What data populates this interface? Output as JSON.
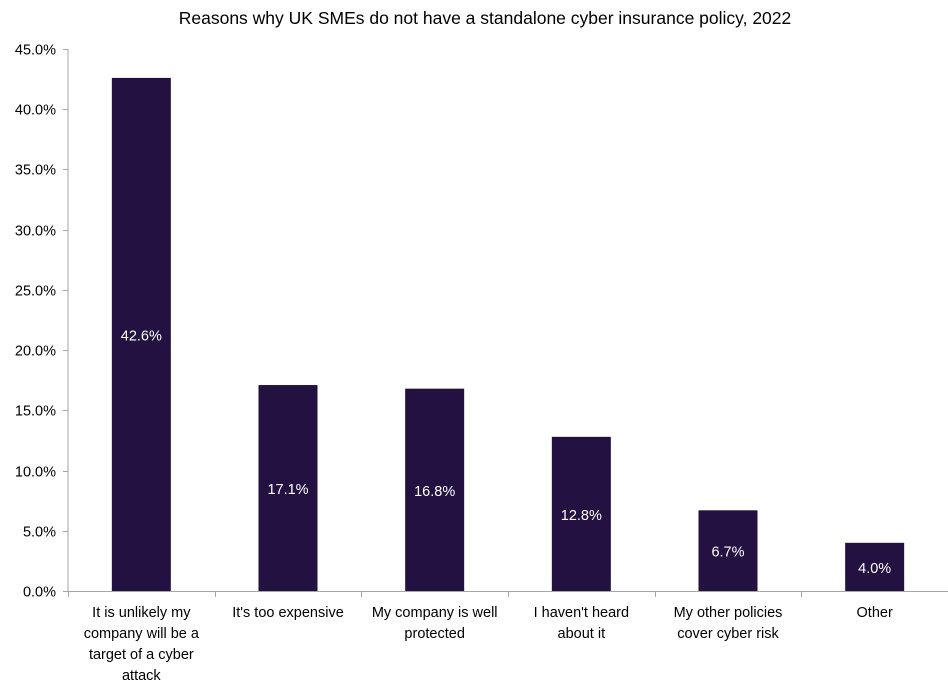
{
  "chart_data": {
    "type": "bar",
    "title": "Reasons why UK SMEs do not have a standalone cyber insurance policy, 2022",
    "xlabel": "",
    "ylabel": "",
    "categories": [
      "It is unlikely my company will be a target of a cyber attack",
      "It's too expensive",
      "My company is well protected",
      "I haven't heard about it",
      "My other policies cover cyber risk",
      "Other"
    ],
    "category_lines": [
      [
        "It is unlikely my",
        "company will be a",
        "target of a cyber",
        "attack"
      ],
      [
        "It's too expensive"
      ],
      [
        "My company is well",
        "protected"
      ],
      [
        "I haven't heard",
        "about it"
      ],
      [
        "My other policies",
        "cover cyber risk"
      ],
      [
        "Other"
      ]
    ],
    "values": [
      42.6,
      17.1,
      16.8,
      12.8,
      6.7,
      4.0
    ],
    "data_labels": [
      "42.6%",
      "17.1%",
      "16.8%",
      "12.8%",
      "6.7%",
      "4.0%"
    ],
    "ylim": [
      0,
      45
    ],
    "yticks": [
      0,
      5,
      10,
      15,
      20,
      25,
      30,
      35,
      40,
      45
    ],
    "ytick_labels": [
      "0.0%",
      "5.0%",
      "10.0%",
      "15.0%",
      "20.0%",
      "25.0%",
      "30.0%",
      "35.0%",
      "40.0%",
      "45.0%"
    ],
    "grid": false,
    "legend": "none",
    "bar_color": "#231142",
    "axis_color": "#a6a6a6",
    "label_color": "#ffffff"
  }
}
